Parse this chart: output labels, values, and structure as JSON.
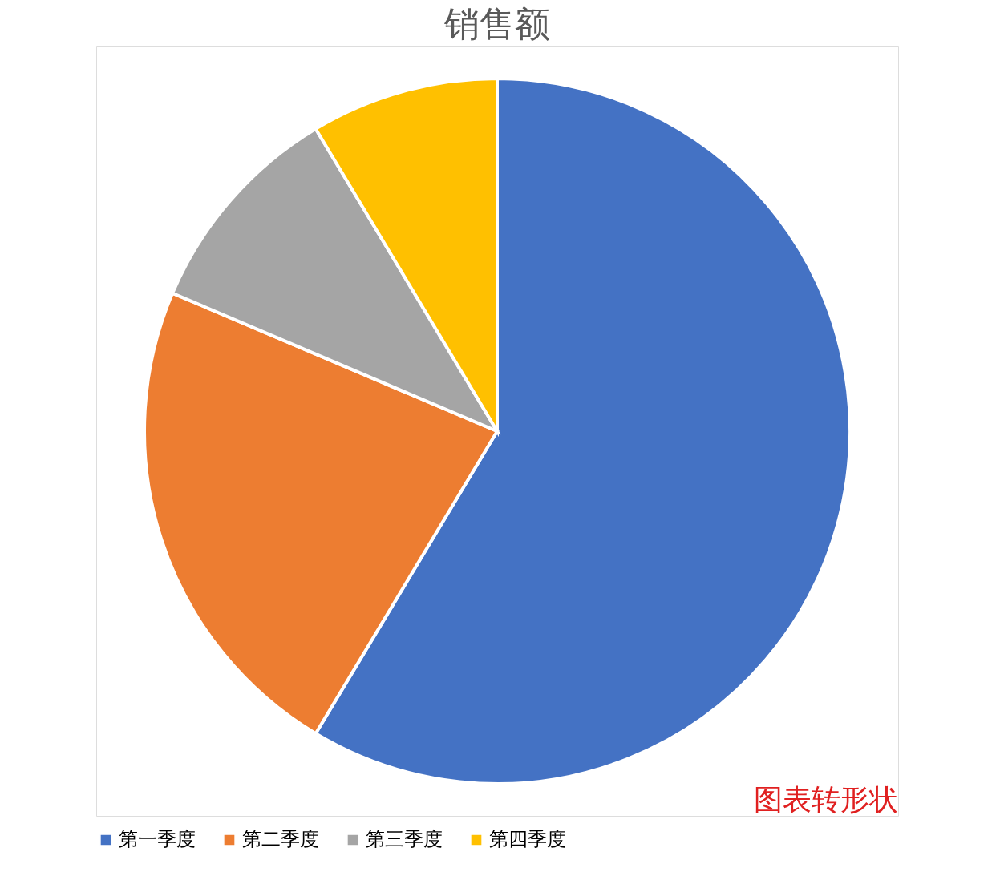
{
  "chart_data": {
    "type": "pie",
    "title": "销售额",
    "categories": [
      "第一季度",
      "第二季度",
      "第三季度",
      "第四季度"
    ],
    "values": [
      58.6,
      22.8,
      10.0,
      8.6
    ],
    "colors": [
      "#4472c4",
      "#ed7d31",
      "#a5a5a5",
      "#ffc000"
    ],
    "legend": "bottom",
    "annotations": [
      "图表转形状"
    ]
  }
}
